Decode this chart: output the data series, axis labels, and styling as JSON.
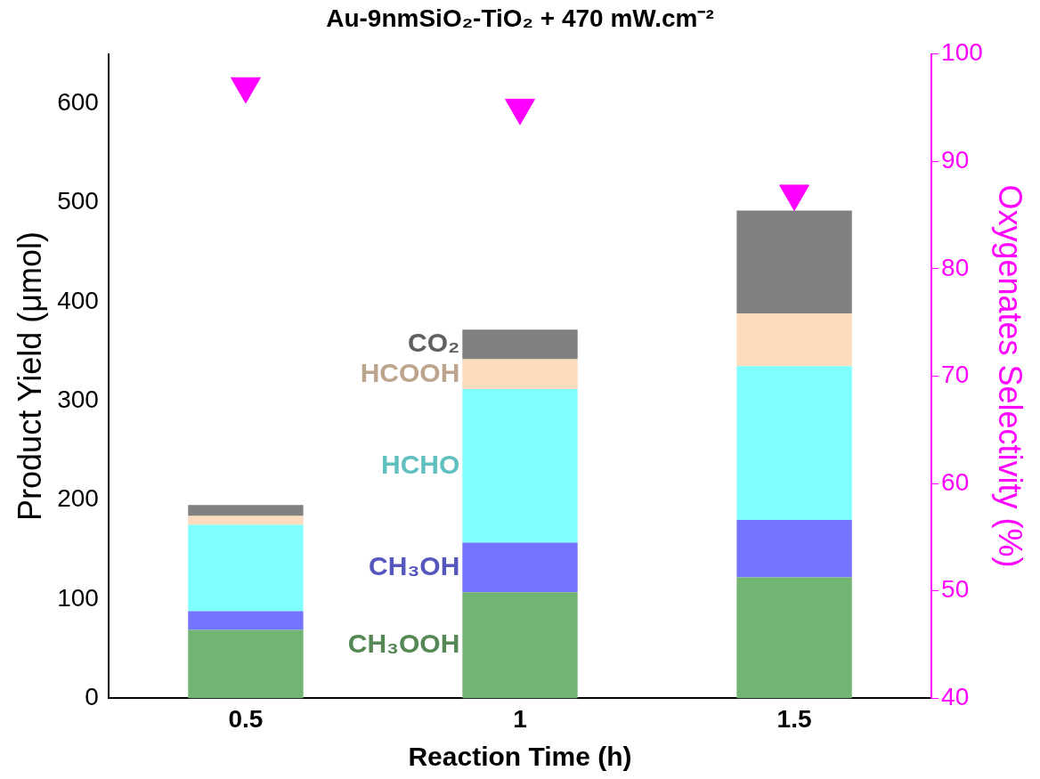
{
  "chart_data": {
    "type": "bar",
    "stacked": true,
    "title": "Au-9nmSiO₂-TiO₂ + 470 mW.cm⁻²",
    "xlabel": "Reaction Time (h)",
    "ylabel": "Product Yield (μmol)",
    "y2label": "Oxygenates Selectivity (%)",
    "categories": [
      "0.5",
      "1",
      "1.5"
    ],
    "ylim": [
      0,
      650
    ],
    "yticks": [
      0,
      100,
      200,
      300,
      400,
      500,
      600
    ],
    "y2lim": [
      40,
      100
    ],
    "y2ticks": [
      40,
      50,
      60,
      70,
      80,
      90,
      100
    ],
    "grid": false,
    "legend": false,
    "series": [
      {
        "name": "CH₃OOH",
        "color": "#72b572",
        "values": [
          69,
          107,
          122
        ]
      },
      {
        "name": "CH₃OH",
        "color": "#7373ff",
        "values": [
          19,
          50,
          58
        ]
      },
      {
        "name": "HCHO",
        "color": "#80ffff",
        "values": [
          87,
          155,
          155
        ]
      },
      {
        "name": "HCOOH",
        "color": "#fcdcbc",
        "values": [
          9,
          30,
          53
        ]
      },
      {
        "name": "CO₂",
        "color": "#808080",
        "values": [
          11,
          30,
          104
        ]
      },
      {
        "type": "scatter",
        "axis": "y2",
        "marker": "triangle",
        "color": "#ff00ff",
        "values": [
          97,
          95,
          87
        ]
      }
    ]
  }
}
